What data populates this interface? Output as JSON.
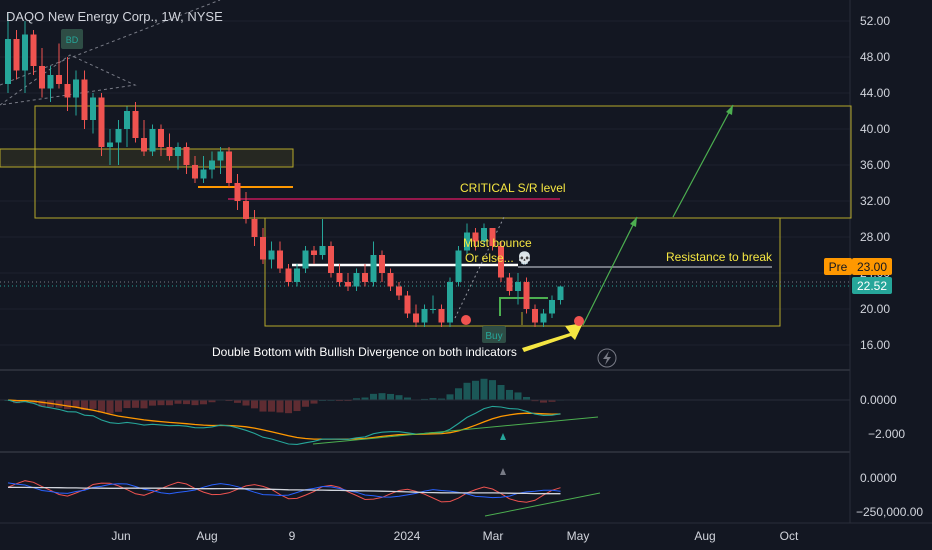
{
  "header": {
    "title": "DAQO New Energy Corp., 1W, NYSE"
  },
  "price_axis": {
    "ticks": [
      "52.00",
      "48.00",
      "44.00",
      "40.00",
      "36.00",
      "32.00",
      "28.00",
      "24.00",
      "20.00",
      "16.00"
    ]
  },
  "price_tags": {
    "pre_label": "Pre",
    "pre_value": "23.00",
    "last_value": "22.52"
  },
  "macd_axis": {
    "ticks": [
      "0.0000",
      "−2.000"
    ]
  },
  "obv_axis": {
    "ticks": [
      "0.0000",
      "−250,000.00"
    ]
  },
  "time_axis": {
    "labels": [
      "Jun",
      "Aug",
      "9",
      "2024",
      "Mar",
      "May",
      "Aug",
      "Oct"
    ]
  },
  "badges": {
    "bd": "BD",
    "buy": "Buy"
  },
  "annotations": {
    "critical": "CRITICAL S/R level",
    "must_bounce": "Must bounce",
    "or_else": "Or else... 💀",
    "resistance": "Resistance to break",
    "double_bottom": "Double Bottom with Bullish Divergence on both indicators"
  },
  "colors": {
    "background": "#131722",
    "bull": "#26a69a",
    "bear": "#ef5350",
    "yellow_box": "#b5a82a",
    "support_orange": "#ff9800",
    "critical_line": "#c2185b",
    "target_arrow": "#4caf50",
    "callout_arrow": "#f5e642",
    "pre_tag": "#ff9800",
    "last_tag": "#26a69a"
  },
  "chart_data": {
    "type": "candlestick",
    "symbol": "DAQO New Energy Corp.",
    "interval": "1W",
    "exchange": "NYSE",
    "candles": [
      {
        "o": 45,
        "h": 53,
        "l": 44,
        "c": 50
      },
      {
        "o": 50,
        "h": 51,
        "l": 45.5,
        "c": 46.5
      },
      {
        "o": 46.5,
        "h": 52,
        "l": 44,
        "c": 50.5
      },
      {
        "o": 50.5,
        "h": 51,
        "l": 46,
        "c": 47
      },
      {
        "o": 47,
        "h": 49,
        "l": 43.5,
        "c": 44.5
      },
      {
        "o": 44.5,
        "h": 47,
        "l": 43,
        "c": 46
      },
      {
        "o": 46,
        "h": 49.5,
        "l": 44.5,
        "c": 45
      },
      {
        "o": 45,
        "h": 48,
        "l": 42,
        "c": 43.5
      },
      {
        "o": 43.5,
        "h": 46.5,
        "l": 41.5,
        "c": 45.5
      },
      {
        "o": 45.5,
        "h": 46.5,
        "l": 40,
        "c": 41
      },
      {
        "o": 41,
        "h": 44,
        "l": 39.5,
        "c": 43.5
      },
      {
        "o": 43.5,
        "h": 44,
        "l": 37,
        "c": 38
      },
      {
        "o": 38,
        "h": 40,
        "l": 36,
        "c": 38.5
      },
      {
        "o": 38.5,
        "h": 41,
        "l": 36,
        "c": 40
      },
      {
        "o": 40,
        "h": 42.5,
        "l": 38,
        "c": 42
      },
      {
        "o": 42,
        "h": 43,
        "l": 38.5,
        "c": 39
      },
      {
        "o": 39,
        "h": 41,
        "l": 37,
        "c": 37.5
      },
      {
        "o": 37.5,
        "h": 40.5,
        "l": 37,
        "c": 40
      },
      {
        "o": 40,
        "h": 40.5,
        "l": 37,
        "c": 38
      },
      {
        "o": 38,
        "h": 39.5,
        "l": 36.5,
        "c": 37
      },
      {
        "o": 37,
        "h": 38.5,
        "l": 35.5,
        "c": 38
      },
      {
        "o": 38,
        "h": 38.5,
        "l": 35,
        "c": 36
      },
      {
        "o": 36,
        "h": 37,
        "l": 34,
        "c": 34.5
      },
      {
        "o": 34.5,
        "h": 37,
        "l": 34,
        "c": 35.5
      },
      {
        "o": 35.5,
        "h": 37.5,
        "l": 34.5,
        "c": 36.5
      },
      {
        "o": 36.5,
        "h": 38,
        "l": 35,
        "c": 37.5
      },
      {
        "o": 37.5,
        "h": 38,
        "l": 33.5,
        "c": 34
      },
      {
        "o": 34,
        "h": 35,
        "l": 31,
        "c": 32
      },
      {
        "o": 32,
        "h": 33,
        "l": 29.5,
        "c": 30
      },
      {
        "o": 30,
        "h": 31,
        "l": 27,
        "c": 28
      },
      {
        "o": 28,
        "h": 29,
        "l": 25,
        "c": 25.5
      },
      {
        "o": 25.5,
        "h": 27.5,
        "l": 24.5,
        "c": 26.5
      },
      {
        "o": 26.5,
        "h": 27.5,
        "l": 24,
        "c": 24.5
      },
      {
        "o": 24.5,
        "h": 25,
        "l": 22.5,
        "c": 23
      },
      {
        "o": 23,
        "h": 25,
        "l": 22.5,
        "c": 24.5
      },
      {
        "o": 24.5,
        "h": 27,
        "l": 24,
        "c": 26.5
      },
      {
        "o": 26.5,
        "h": 27,
        "l": 25,
        "c": 26
      },
      {
        "o": 26,
        "h": 30,
        "l": 25.5,
        "c": 27
      },
      {
        "o": 27,
        "h": 27.5,
        "l": 23.5,
        "c": 24
      },
      {
        "o": 24,
        "h": 25,
        "l": 22.5,
        "c": 23
      },
      {
        "o": 23,
        "h": 24,
        "l": 22,
        "c": 22.5
      },
      {
        "o": 22.5,
        "h": 24.5,
        "l": 22,
        "c": 24
      },
      {
        "o": 24,
        "h": 25,
        "l": 22.5,
        "c": 23
      },
      {
        "o": 23,
        "h": 27.5,
        "l": 22.5,
        "c": 26
      },
      {
        "o": 26,
        "h": 26.5,
        "l": 23,
        "c": 24
      },
      {
        "o": 24,
        "h": 24.5,
        "l": 22,
        "c": 22.5
      },
      {
        "o": 22.5,
        "h": 23,
        "l": 21,
        "c": 21.5
      },
      {
        "o": 21.5,
        "h": 22,
        "l": 19,
        "c": 19.5
      },
      {
        "o": 19.5,
        "h": 20.5,
        "l": 18,
        "c": 18.5
      },
      {
        "o": 18.5,
        "h": 20.5,
        "l": 18,
        "c": 20
      },
      {
        "o": 20,
        "h": 21.5,
        "l": 19.5,
        "c": 20
      },
      {
        "o": 20,
        "h": 20.5,
        "l": 18,
        "c": 18.5
      },
      {
        "o": 18.5,
        "h": 23.5,
        "l": 18,
        "c": 23
      },
      {
        "o": 23,
        "h": 27,
        "l": 22.5,
        "c": 26.5
      },
      {
        "o": 26.5,
        "h": 29.5,
        "l": 26,
        "c": 28.5
      },
      {
        "o": 28.5,
        "h": 29,
        "l": 26.5,
        "c": 27.5
      },
      {
        "o": 27.5,
        "h": 29.5,
        "l": 27,
        "c": 29
      },
      {
        "o": 29,
        "h": 29,
        "l": 26.5,
        "c": 27
      },
      {
        "o": 27,
        "h": 27.5,
        "l": 23,
        "c": 23.5
      },
      {
        "o": 23.5,
        "h": 24,
        "l": 21.5,
        "c": 22
      },
      {
        "o": 22,
        "h": 24,
        "l": 20.5,
        "c": 23
      },
      {
        "o": 23,
        "h": 23.5,
        "l": 19.5,
        "c": 20
      },
      {
        "o": 20,
        "h": 20.5,
        "l": 18,
        "c": 18.5
      },
      {
        "o": 18.5,
        "h": 20,
        "l": 18,
        "c": 19.5
      },
      {
        "o": 19.5,
        "h": 21.5,
        "l": 19,
        "c": 21
      },
      {
        "o": 21,
        "h": 22.5,
        "l": 20.5,
        "c": 22.5
      }
    ]
  }
}
